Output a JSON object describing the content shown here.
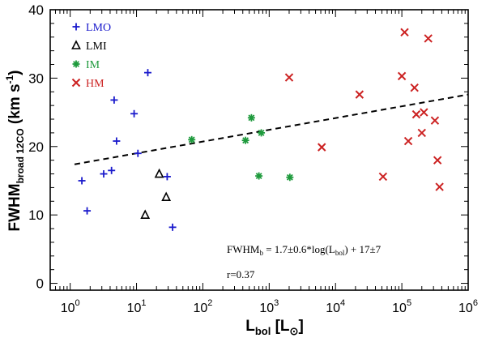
{
  "chart_data": {
    "type": "scatter",
    "xscale": "log",
    "xlim": [
      0.5,
      1000000
    ],
    "ylim": [
      -1,
      40
    ],
    "xlabel": {
      "main": "L",
      "sub": "bol",
      "unit_open": " [L",
      "unit_sub": "⊙",
      "unit_close": "]"
    },
    "ylabel": {
      "main": "FWHM",
      "sub": "broad 12CO",
      "unit": " (km s",
      "unit_sup": "-1",
      "unit_close": ")"
    },
    "x_ticks": [
      {
        "value": 1,
        "base": "10",
        "exp": "0"
      },
      {
        "value": 10,
        "base": "10",
        "exp": "1"
      },
      {
        "value": 100,
        "base": "10",
        "exp": "2"
      },
      {
        "value": 1000,
        "base": "10",
        "exp": "3"
      },
      {
        "value": 10000,
        "base": "10",
        "exp": "4"
      },
      {
        "value": 100000,
        "base": "10",
        "exp": "5"
      },
      {
        "value": 1000000,
        "base": "10",
        "exp": "6"
      }
    ],
    "y_ticks": [
      0,
      10,
      20,
      30,
      40
    ],
    "series": [
      {
        "name": "LMO",
        "marker": "plus",
        "color": "#1a1acc",
        "points": [
          [
            1.5,
            15
          ],
          [
            1.8,
            10.6
          ],
          [
            3.2,
            16
          ],
          [
            4.2,
            16.5
          ],
          [
            4.6,
            26.8
          ],
          [
            5,
            20.8
          ],
          [
            9.2,
            24.8
          ],
          [
            10.5,
            19
          ],
          [
            14.8,
            30.8
          ],
          [
            29,
            15.6
          ],
          [
            35,
            8.2
          ]
        ]
      },
      {
        "name": "LMI",
        "marker": "triangle",
        "color": "#000000",
        "points": [
          [
            13.5,
            10
          ],
          [
            22,
            16
          ],
          [
            28,
            12.6
          ]
        ]
      },
      {
        "name": "IM",
        "marker": "asterisk",
        "color": "#1e9a3c",
        "points": [
          [
            68,
            21
          ],
          [
            440,
            20.9
          ],
          [
            540,
            24.2
          ],
          [
            700,
            15.7
          ],
          [
            760,
            22
          ],
          [
            2050,
            15.5
          ]
        ]
      },
      {
        "name": "HM",
        "marker": "cross",
        "color": "#cc2222",
        "points": [
          [
            2000,
            30.1
          ],
          [
            6200,
            19.9
          ],
          [
            23000,
            27.6
          ],
          [
            52000,
            15.6
          ],
          [
            100000,
            30.3
          ],
          [
            110000,
            36.7
          ],
          [
            125000,
            20.8
          ],
          [
            155000,
            28.6
          ],
          [
            165000,
            24.7
          ],
          [
            200000,
            22
          ],
          [
            215000,
            25
          ],
          [
            250000,
            35.8
          ],
          [
            315000,
            23.8
          ],
          [
            345000,
            18
          ],
          [
            370000,
            14.1
          ]
        ]
      }
    ],
    "fit": {
      "style": "dashed",
      "color": "#000000",
      "slope": 1.7,
      "intercept": 17.4
    },
    "annotations": {
      "fit_eq": {
        "lhs": "FWHM",
        "lhs_sub": "b",
        "mid": " = 1.7±0.6*log(L",
        "mid_sub": "bol",
        "rhs": ") + 17±7"
      },
      "r_value": "r=0.37"
    },
    "legend_position": "top-left"
  }
}
